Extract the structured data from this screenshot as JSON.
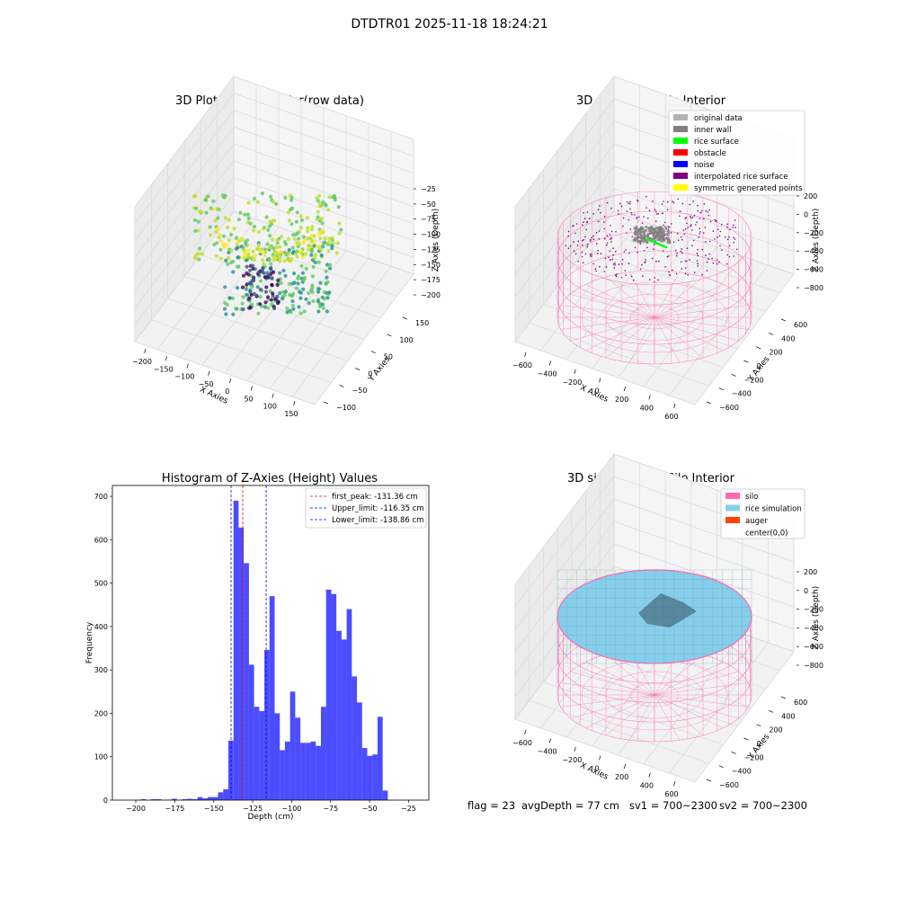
{
  "figure": {
    "suptitle": "DTDTR01 2025-11-18 18:24:21"
  },
  "footer": {
    "flag": "flag = 23",
    "avg_depth": "avgDepth = 77 cm",
    "sv1": "sv1 = 700~2300",
    "sv2": "sv2 = 700~2300"
  },
  "chart_data": [
    {
      "id": "raw",
      "type": "scatter",
      "title": "3D Plot of Silo Interior(row data)",
      "xlabel": "X Axies",
      "ylabel": "Y Axies",
      "zlabel": "Z Axies (Depth)",
      "x_ticks": [
        "−200",
        "−150",
        "−100",
        "−50",
        "0",
        "50",
        "100",
        "150"
      ],
      "y_ticks": [
        "−100",
        "−50",
        "0",
        "50",
        "100",
        "150"
      ],
      "z_ticks": [
        "−25",
        "−50",
        "−75",
        "−100",
        "−125",
        "−150",
        "−175",
        "−200"
      ],
      "xlim": [
        -220,
        170
      ],
      "ylim": [
        -110,
        160
      ],
      "zlim": [
        -215,
        -15
      ],
      "colormap": "viridis"
    },
    {
      "id": "classify",
      "type": "scatter",
      "title": "3D classify of Silo Interior",
      "xlabel": "X Axies",
      "ylabel": "Y Axies",
      "zlabel": "Z Axies (Depth)",
      "x_ticks": [
        "−600",
        "−400",
        "−200",
        "0",
        "200",
        "400",
        "600"
      ],
      "y_ticks": [
        "−600",
        "−400",
        "−200",
        "0",
        "200",
        "400",
        "600"
      ],
      "z_ticks": [
        "200",
        "0",
        "−200",
        "−400",
        "−600",
        "−800"
      ],
      "legend": [
        {
          "label": "original data",
          "color": "#b3b3b3"
        },
        {
          "label": "inner wall",
          "color": "#808080"
        },
        {
          "label": "rice surface",
          "color": "#00ff00"
        },
        {
          "label": "obstacle",
          "color": "#ff0000"
        },
        {
          "label": "noise",
          "color": "#0000ff"
        },
        {
          "label": "interpolated rice surface",
          "color": "#800080"
        },
        {
          "label": "symmetric generated points",
          "color": "#ffff00"
        }
      ],
      "silo_color": "#ff69b4"
    },
    {
      "id": "hist",
      "type": "bar",
      "title": "Histogram of Z-Axies (Height) Values",
      "xlabel": "Depth (cm)",
      "ylabel": "Frequency",
      "xlim": [
        -215,
        -12
      ],
      "ylim": [
        0,
        725
      ],
      "x_ticks": [
        -200,
        -175,
        -150,
        -125,
        -100,
        -75,
        -50,
        -25
      ],
      "x_tick_labels": [
        "−200",
        "−175",
        "−150",
        "−125",
        "−100",
        "−75",
        "−50",
        "−25"
      ],
      "y_ticks": [
        0,
        100,
        200,
        300,
        400,
        500,
        600,
        700
      ],
      "bar_color": "#0000ff",
      "bar_alpha": 0.7,
      "bin_left": [
        -200,
        -196.7,
        -193.4,
        -190.1,
        -186.8,
        -183.5,
        -180.2,
        -176.9,
        -173.6,
        -170.3,
        -167,
        -163.7,
        -160.4,
        -157.1,
        -153.8,
        -150.5,
        -147.2,
        -143.9,
        -140.6,
        -137.3,
        -134,
        -130.7,
        -127.4,
        -124.1,
        -120.8,
        -117.5,
        -114.2,
        -110.9,
        -107.6,
        -104.3,
        -101,
        -97.7,
        -94.4,
        -91.1,
        -87.8,
        -84.5,
        -81.2,
        -77.9,
        -74.6,
        -71.3,
        -68,
        -64.7,
        -61.4,
        -58.1,
        -54.8,
        -51.5,
        -48.2,
        -44.9,
        -41.6,
        -38.3,
        -35,
        -31.7,
        -28.4,
        -25.1
      ],
      "bin_width": 3.3,
      "counts": [
        0,
        2,
        0,
        2,
        2,
        0,
        1,
        3,
        0,
        2,
        3,
        2,
        7,
        4,
        7,
        7,
        18,
        25,
        137,
        690,
        628,
        546,
        312,
        215,
        205,
        346,
        470,
        200,
        115,
        135,
        250,
        190,
        132,
        132,
        135,
        125,
        215,
        485,
        475,
        390,
        370,
        440,
        285,
        225,
        120,
        102,
        105,
        192,
        22,
        0,
        0,
        0,
        0,
        0
      ],
      "vlines": [
        {
          "label": "first_peak: -131.36 cm",
          "x": -131.36,
          "color": "#ff0000"
        },
        {
          "label": "Upper_limit: -116.35 cm",
          "x": -116.35,
          "color": "#0000ff"
        },
        {
          "label": "Lower_limit: -138.86 cm",
          "x": -138.86,
          "color": "#0000ff"
        }
      ]
    },
    {
      "id": "sim",
      "type": "surface",
      "title": "3D simulation of Silo Interior",
      "xlabel": "X Axies",
      "ylabel": "Y Axies",
      "zlabel": "Z Axies (Depth)",
      "x_ticks": [
        "−600",
        "−400",
        "−200",
        "0",
        "200",
        "400",
        "600"
      ],
      "y_ticks": [
        "−600",
        "−400",
        "−200",
        "0",
        "200",
        "400",
        "600"
      ],
      "z_ticks": [
        "200",
        "0",
        "−200",
        "−400",
        "−600",
        "−800"
      ],
      "legend": [
        {
          "label": "silo",
          "color": "#ff69b4"
        },
        {
          "label": "rice simulation",
          "color": "#87ceeb"
        },
        {
          "label": "auger",
          "color": "#ff4500"
        },
        {
          "label": "center(0,0)",
          "color": "#ffffff"
        }
      ]
    }
  ]
}
